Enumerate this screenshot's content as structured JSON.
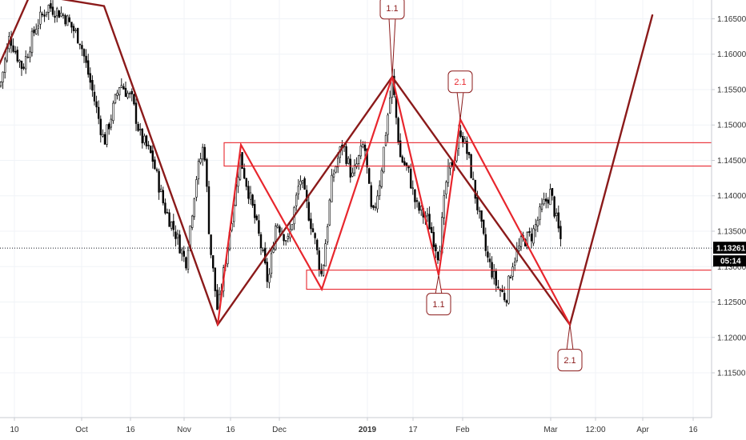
{
  "chart_data": {
    "type": "candlestick",
    "y_axis": {
      "ticks": [
        "1.16500",
        "1.16000",
        "1.15500",
        "1.15000",
        "1.14500",
        "1.14000",
        "1.13500",
        "1.13000",
        "1.12500",
        "1.12000",
        "1.11500"
      ],
      "ylim": [
        1.1115,
        1.1672
      ]
    },
    "x_axis": {
      "ticks": [
        {
          "label": "10",
          "bold": false
        },
        {
          "label": "Oct",
          "bold": false
        },
        {
          "label": "16",
          "bold": false
        },
        {
          "label": "Nov",
          "bold": false
        },
        {
          "label": "16",
          "bold": false
        },
        {
          "label": "Dec",
          "bold": false
        },
        {
          "label": "2019",
          "bold": true
        },
        {
          "label": "17",
          "bold": false
        },
        {
          "label": "Feb",
          "bold": false
        },
        {
          "label": "Mar",
          "bold": false
        },
        {
          "label": "12:00",
          "bold": false
        },
        {
          "label": "Apr",
          "bold": false
        },
        {
          "label": "16",
          "bold": false
        }
      ]
    },
    "price_series": [
      [
        0,
        1.1555
      ],
      [
        12,
        1.1625
      ],
      [
        28,
        1.158
      ],
      [
        45,
        1.164
      ],
      [
        60,
        1.1668
      ],
      [
        80,
        1.1655
      ],
      [
        100,
        1.162
      ],
      [
        115,
        1.155
      ],
      [
        130,
        1.1475
      ],
      [
        150,
        1.156
      ],
      [
        165,
        1.1535
      ],
      [
        175,
        1.1485
      ],
      [
        190,
        1.1455
      ],
      [
        205,
        1.1385
      ],
      [
        220,
        1.1345
      ],
      [
        232,
        1.1305
      ],
      [
        245,
        1.1425
      ],
      [
        255,
        1.1475
      ],
      [
        262,
        1.1335
      ],
      [
        272,
        1.1235
      ],
      [
        285,
        1.1335
      ],
      [
        300,
        1.1455
      ],
      [
        315,
        1.1385
      ],
      [
        325,
        1.1335
      ],
      [
        335,
        1.1275
      ],
      [
        345,
        1.1365
      ],
      [
        360,
        1.1335
      ],
      [
        375,
        1.1425
      ],
      [
        392,
        1.1345
      ],
      [
        402,
        1.1285
      ],
      [
        415,
        1.1425
      ],
      [
        428,
        1.1475
      ],
      [
        440,
        1.1425
      ],
      [
        455,
        1.1475
      ],
      [
        465,
        1.1365
      ],
      [
        475,
        1.1425
      ],
      [
        490,
        1.1565
      ],
      [
        500,
        1.1455
      ],
      [
        510,
        1.1435
      ],
      [
        520,
        1.1385
      ],
      [
        535,
        1.1365
      ],
      [
        548,
        1.1315
      ],
      [
        558,
        1.1425
      ],
      [
        568,
        1.1455
      ],
      [
        575,
        1.1495
      ],
      [
        585,
        1.1455
      ],
      [
        598,
        1.1375
      ],
      [
        608,
        1.1315
      ],
      [
        620,
        1.1275
      ],
      [
        632,
        1.1255
      ],
      [
        640,
        1.1305
      ],
      [
        652,
        1.1335
      ],
      [
        665,
        1.1345
      ],
      [
        678,
        1.1385
      ],
      [
        688,
        1.1405
      ],
      [
        697,
        1.1355
      ],
      [
        703,
        1.1325
      ]
    ],
    "current_price": {
      "value": "1.13261",
      "y": 1.13261
    },
    "countdown": "05:14",
    "zigzag_dark": [
      [
        -10,
        1.1562
      ],
      [
        38,
        1.1685
      ],
      [
        130,
        1.1668
      ],
      [
        272,
        1.1218
      ],
      [
        490,
        1.1568
      ],
      [
        712,
        1.1218
      ],
      [
        815,
        1.1655
      ]
    ],
    "zigzag_red": [
      [
        272,
        1.1218
      ],
      [
        301,
        1.1472
      ],
      [
        402,
        1.1268
      ],
      [
        490,
        1.1568
      ],
      [
        548,
        1.1288
      ],
      [
        575,
        1.1508
      ],
      [
        712,
        1.1218
      ]
    ],
    "rectangles": [
      {
        "x0": 280,
        "x1": 890,
        "y_top": 1.1475,
        "y_bottom": 1.1442
      },
      {
        "x0": 383,
        "x1": 890,
        "y_top": 1.1295,
        "y_bottom": 1.1268
      }
    ],
    "annotations": [
      {
        "text": "1.1",
        "point": [
          490,
          1.1568
        ],
        "box_x": 490,
        "box_y": 1.1665
      },
      {
        "text": "2.1",
        "point": [
          575,
          1.1508
        ],
        "box_x": 575,
        "box_y": 1.1561
      },
      {
        "text": "1.1",
        "point": [
          548,
          1.1288
        ],
        "box_x": 548,
        "box_y": 1.1247
      },
      {
        "text": "2.1",
        "point": [
          712,
          1.1218
        ],
        "box_x": 712,
        "box_y": 1.1168
      }
    ],
    "colors": {
      "dark_line": "#8b1a1a",
      "red_line": "#e8262d",
      "rect": "#e8262d",
      "candle": "#000000",
      "price_badge": "#000000"
    }
  }
}
